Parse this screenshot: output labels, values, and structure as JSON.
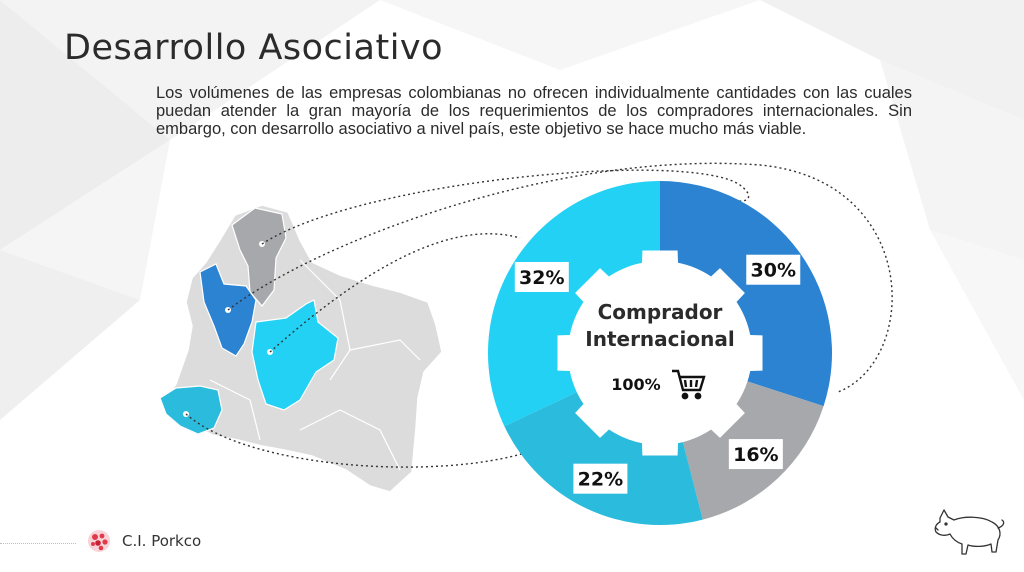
{
  "slide": {
    "title": "Desarrollo Asociativo",
    "paragraph": "Los volúmenes de las empresas colombianas no ofrecen individualmente cantidades con las cuales puedan atender la gran mayoría de los requerimientos de los compradores internacionales. Sin embargo, con desarrollo asociativo a nivel país, este objetivo se hace mucho más viable."
  },
  "chart_data": {
    "type": "pie",
    "slices": [
      {
        "label": "30%",
        "value": 30,
        "color": "#2b83d1"
      },
      {
        "label": "16%",
        "value": 16,
        "color": "#a6a8ab"
      },
      {
        "label": "22%",
        "value": 22,
        "color": "#2bbbdd"
      },
      {
        "label": "32%",
        "value": 32,
        "color": "#22d1f4"
      }
    ],
    "center": {
      "title_line1": "Comprador",
      "title_line2": "Internacional",
      "percent": "100%"
    }
  },
  "map": {
    "highlight_colors": [
      "#a6a8ab",
      "#2b83d1",
      "#22d1f4",
      "#2bbbdd"
    ],
    "base_color": "#dcdcdc"
  },
  "icons": {
    "cart": "shopping-cart-icon",
    "logo": "porkco-logo-icon",
    "pig": "pig-outline-icon"
  },
  "brand": {
    "name": "C.I. Porkco"
  }
}
